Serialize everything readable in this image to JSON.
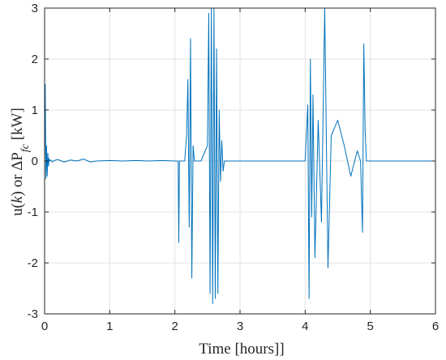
{
  "chart_data": {
    "type": "line",
    "xlabel": "Time [hours]]",
    "ylabel": {
      "prefix": "u(",
      "var": "k",
      "mid": ") or ΔP",
      "sub": "fc",
      "unit": " [kW]"
    },
    "xlim": [
      0,
      6
    ],
    "ylim": [
      -3,
      3
    ],
    "xticks": [
      "0",
      "1",
      "2",
      "3",
      "4",
      "5",
      "6"
    ],
    "yticks": [
      "3",
      "2",
      "1",
      "0",
      "-1",
      "-2",
      "-3"
    ],
    "grid": true,
    "series": [
      {
        "color": "#0072BD",
        "x": [
          0.0,
          0.01,
          0.02,
          0.03,
          0.04,
          0.05,
          0.06,
          0.07,
          0.08,
          0.1,
          0.12,
          0.15,
          0.2,
          0.3,
          0.4,
          0.5,
          0.6,
          0.7,
          0.8,
          1.0,
          1.2,
          1.4,
          1.6,
          1.8,
          2.0,
          2.05,
          2.06,
          2.07,
          2.1,
          2.15,
          2.18,
          2.2,
          2.22,
          2.24,
          2.26,
          2.28,
          2.3,
          2.4,
          2.5,
          2.52,
          2.54,
          2.56,
          2.58,
          2.6,
          2.62,
          2.64,
          2.66,
          2.68,
          2.7,
          2.72,
          2.74,
          2.76,
          2.8,
          3.0,
          3.5,
          4.0,
          4.04,
          4.06,
          4.08,
          4.1,
          4.12,
          4.15,
          4.2,
          4.25,
          4.3,
          4.35,
          4.4,
          4.5,
          4.6,
          4.7,
          4.8,
          4.85,
          4.88,
          4.9,
          4.92,
          4.94,
          4.96,
          5.0,
          5.5,
          6.0
        ],
        "y": [
          0.0,
          1.5,
          -0.35,
          0.3,
          -0.3,
          0.15,
          -0.1,
          0.05,
          0.0,
          0.02,
          -0.02,
          0.01,
          0.03,
          -0.02,
          0.02,
          0.0,
          0.04,
          -0.02,
          0.0,
          0.01,
          0.0,
          0.01,
          0.0,
          0.01,
          0.0,
          0.0,
          -1.6,
          0.0,
          0.0,
          0.0,
          0.5,
          1.6,
          -1.3,
          2.4,
          -2.3,
          0.3,
          0.0,
          0.0,
          0.3,
          2.9,
          -2.6,
          3.0,
          -2.8,
          3.0,
          -2.7,
          2.2,
          -2.6,
          1.0,
          -0.4,
          0.4,
          -0.2,
          0.0,
          0.0,
          0.0,
          0.0,
          0.0,
          1.1,
          -2.7,
          2.0,
          -1.1,
          1.3,
          -1.9,
          0.8,
          -1.2,
          3.0,
          -2.1,
          0.5,
          0.8,
          0.3,
          -0.3,
          0.2,
          0.0,
          -1.4,
          2.3,
          0.6,
          0.0,
          0.0,
          0.0,
          0.0,
          0.0
        ]
      }
    ]
  }
}
